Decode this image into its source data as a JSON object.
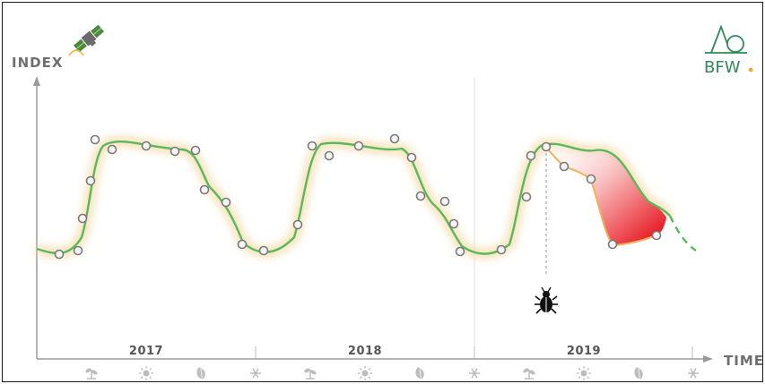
{
  "labels": {
    "y_axis": "INDEX",
    "x_axis": "TIME",
    "years": [
      "2017",
      "2018",
      "2019"
    ]
  },
  "logo": {
    "text": "BFW",
    "dot_color": "#f5a623",
    "color": "#2e8b57"
  },
  "colors": {
    "curve": "#5cb85c",
    "curve_glow": "#f3d9a3",
    "damage": "#e8000b",
    "satellite": "#4a8c3a"
  },
  "icons": {
    "satellite": "satellite-icon",
    "bug": "bark-beetle-icon",
    "season_sequence": [
      "spring",
      "summer",
      "autumn",
      "winter",
      "spring",
      "summer",
      "autumn",
      "winter",
      "spring",
      "summer",
      "autumn",
      "winter"
    ]
  }
}
